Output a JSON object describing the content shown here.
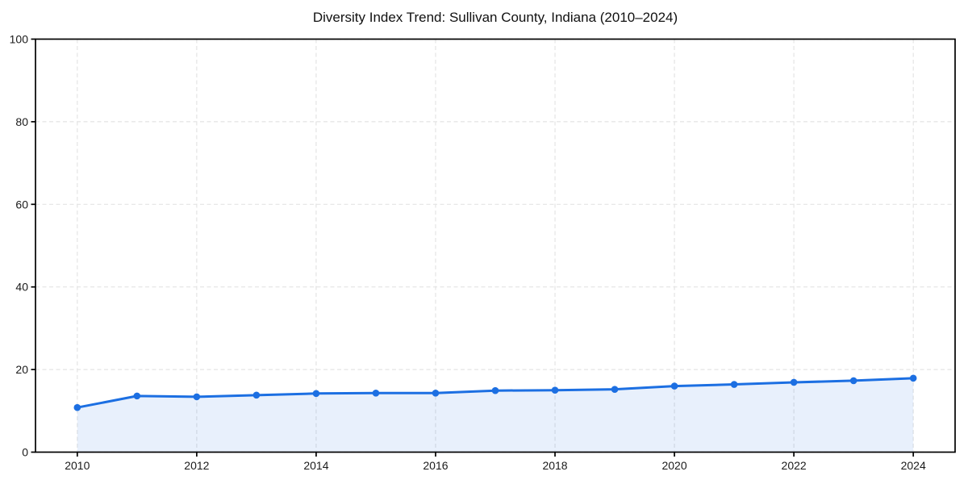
{
  "figure": {
    "background": "#ffffff"
  },
  "chart_data": {
    "type": "line",
    "title": "Diversity Index Trend: Sullivan County, Indiana (2010–2024)",
    "x": [
      2010,
      2011,
      2012,
      2013,
      2014,
      2015,
      2016,
      2017,
      2018,
      2019,
      2020,
      2021,
      2022,
      2023,
      2024
    ],
    "series": [
      {
        "name": "Diversity Index",
        "values": [
          10.8,
          13.6,
          13.4,
          13.8,
          14.2,
          14.3,
          14.3,
          14.9,
          15.0,
          15.2,
          16.0,
          16.4,
          16.9,
          17.3,
          17.9
        ]
      }
    ],
    "xlabel": "",
    "ylabel": "",
    "ylim": [
      0,
      100
    ],
    "yticks": [
      0,
      20,
      40,
      60,
      80,
      100
    ],
    "xticks": [
      2010,
      2012,
      2014,
      2016,
      2018,
      2020,
      2022,
      2024
    ],
    "grid": "dashed",
    "legend": "none",
    "style": {
      "line_color": "#1c6fe2",
      "marker": "circle",
      "fill_under": true,
      "fill_color": "rgba(28,111,226,0.10)",
      "grid_color": "#e4e4e4",
      "axis_color": "#000000",
      "text_color": "#1a1a1a"
    }
  }
}
